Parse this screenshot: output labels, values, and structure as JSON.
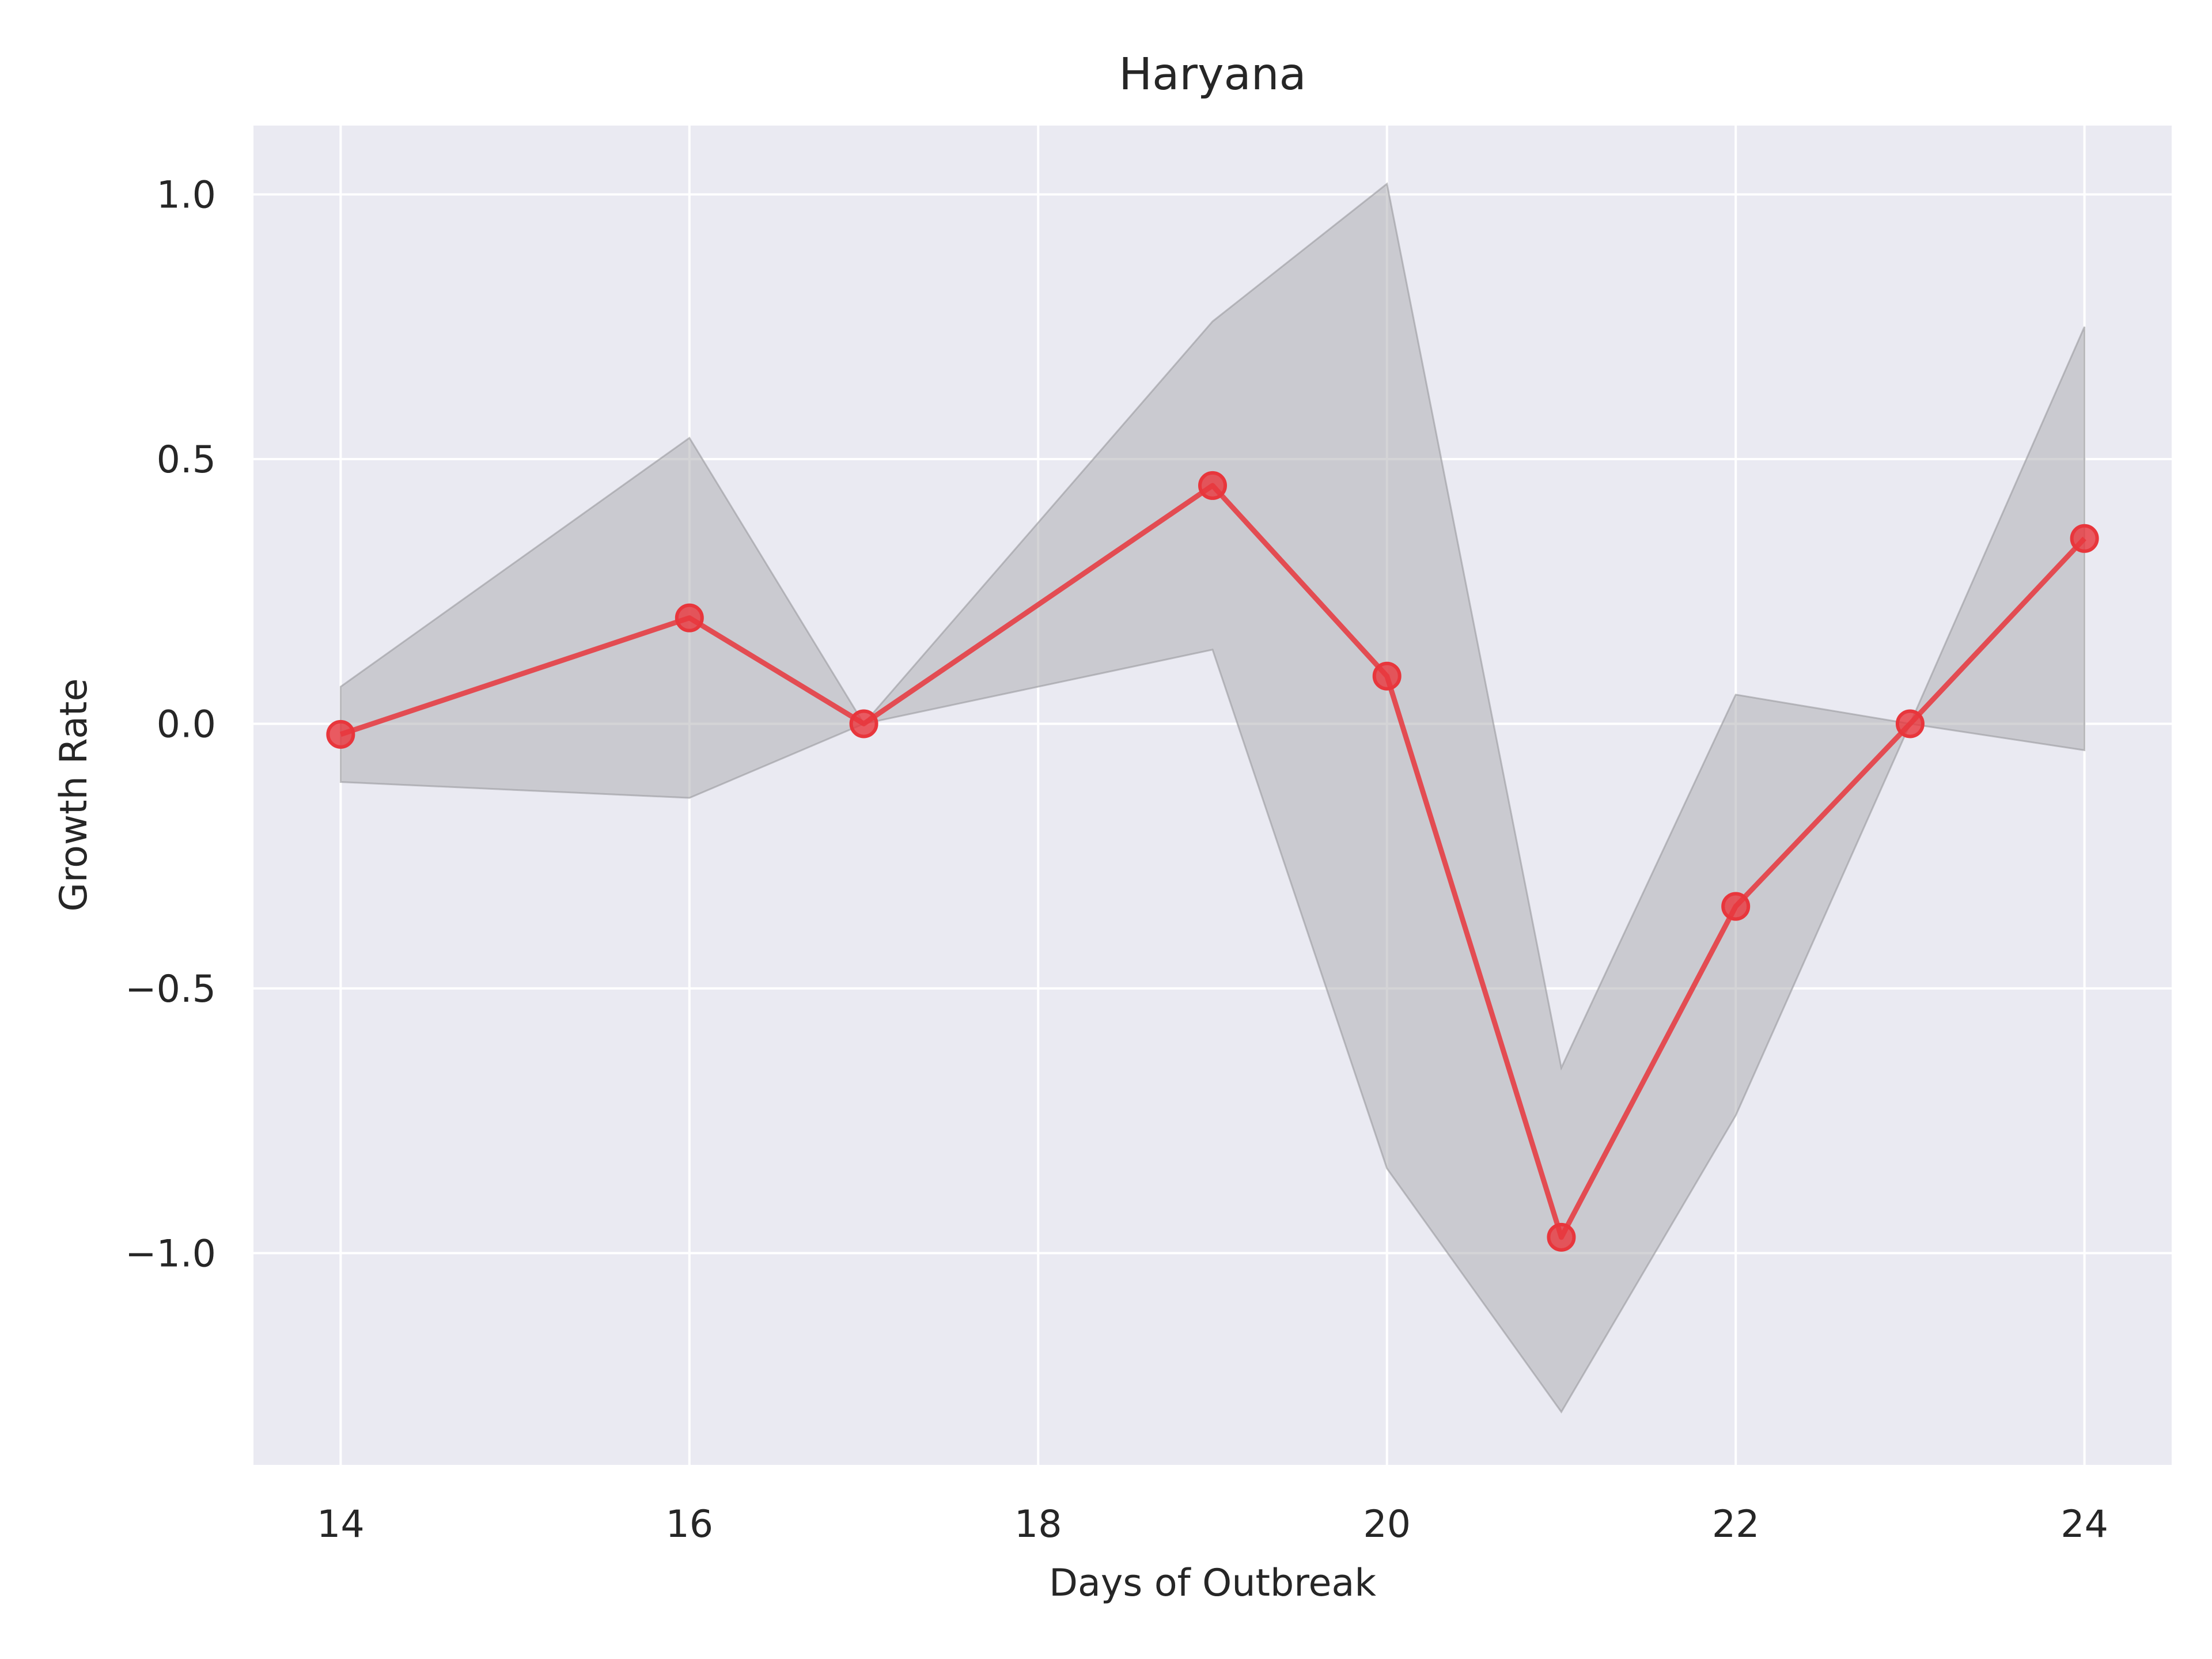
{
  "chart_data": {
    "type": "line",
    "title": "Haryana",
    "xlabel": "Days of Outbreak",
    "ylabel": "Growth Rate",
    "xlim": [
      13.5,
      24.5
    ],
    "ylim": [
      -1.4,
      1.13
    ],
    "xticks": [
      14,
      16,
      18,
      20,
      22,
      24
    ],
    "xtick_labels": [
      "14",
      "16",
      "18",
      "20",
      "22",
      "24"
    ],
    "yticks": [
      1.0,
      0.5,
      0.0,
      -0.5,
      -1.0
    ],
    "ytick_labels": [
      "1.0",
      "0.5",
      "0.0",
      "−0.5",
      "−1.0"
    ],
    "grid": true,
    "series": [
      {
        "color": "#e8363c",
        "marker": "circle",
        "x": [
          14,
          16,
          17,
          19,
          20,
          21,
          22,
          23,
          24
        ],
        "y": [
          -0.02,
          0.2,
          0.0,
          0.45,
          0.09,
          -0.97,
          -0.345,
          0.0,
          0.35
        ]
      }
    ],
    "band": {
      "color": "#a9a9ad",
      "x": [
        14,
        16,
        17,
        19,
        20,
        21,
        22,
        23,
        24
      ],
      "upper": [
        0.07,
        0.54,
        0.0,
        0.76,
        1.02,
        -0.65,
        0.055,
        0.0,
        0.75
      ],
      "lower": [
        -0.11,
        -0.14,
        0.0,
        0.14,
        -0.84,
        -1.3,
        -0.74,
        0.0,
        -0.05
      ]
    },
    "colors": {
      "plot_background": "#eaeaf2",
      "grid": "#ffffff",
      "text": "#262626"
    }
  }
}
